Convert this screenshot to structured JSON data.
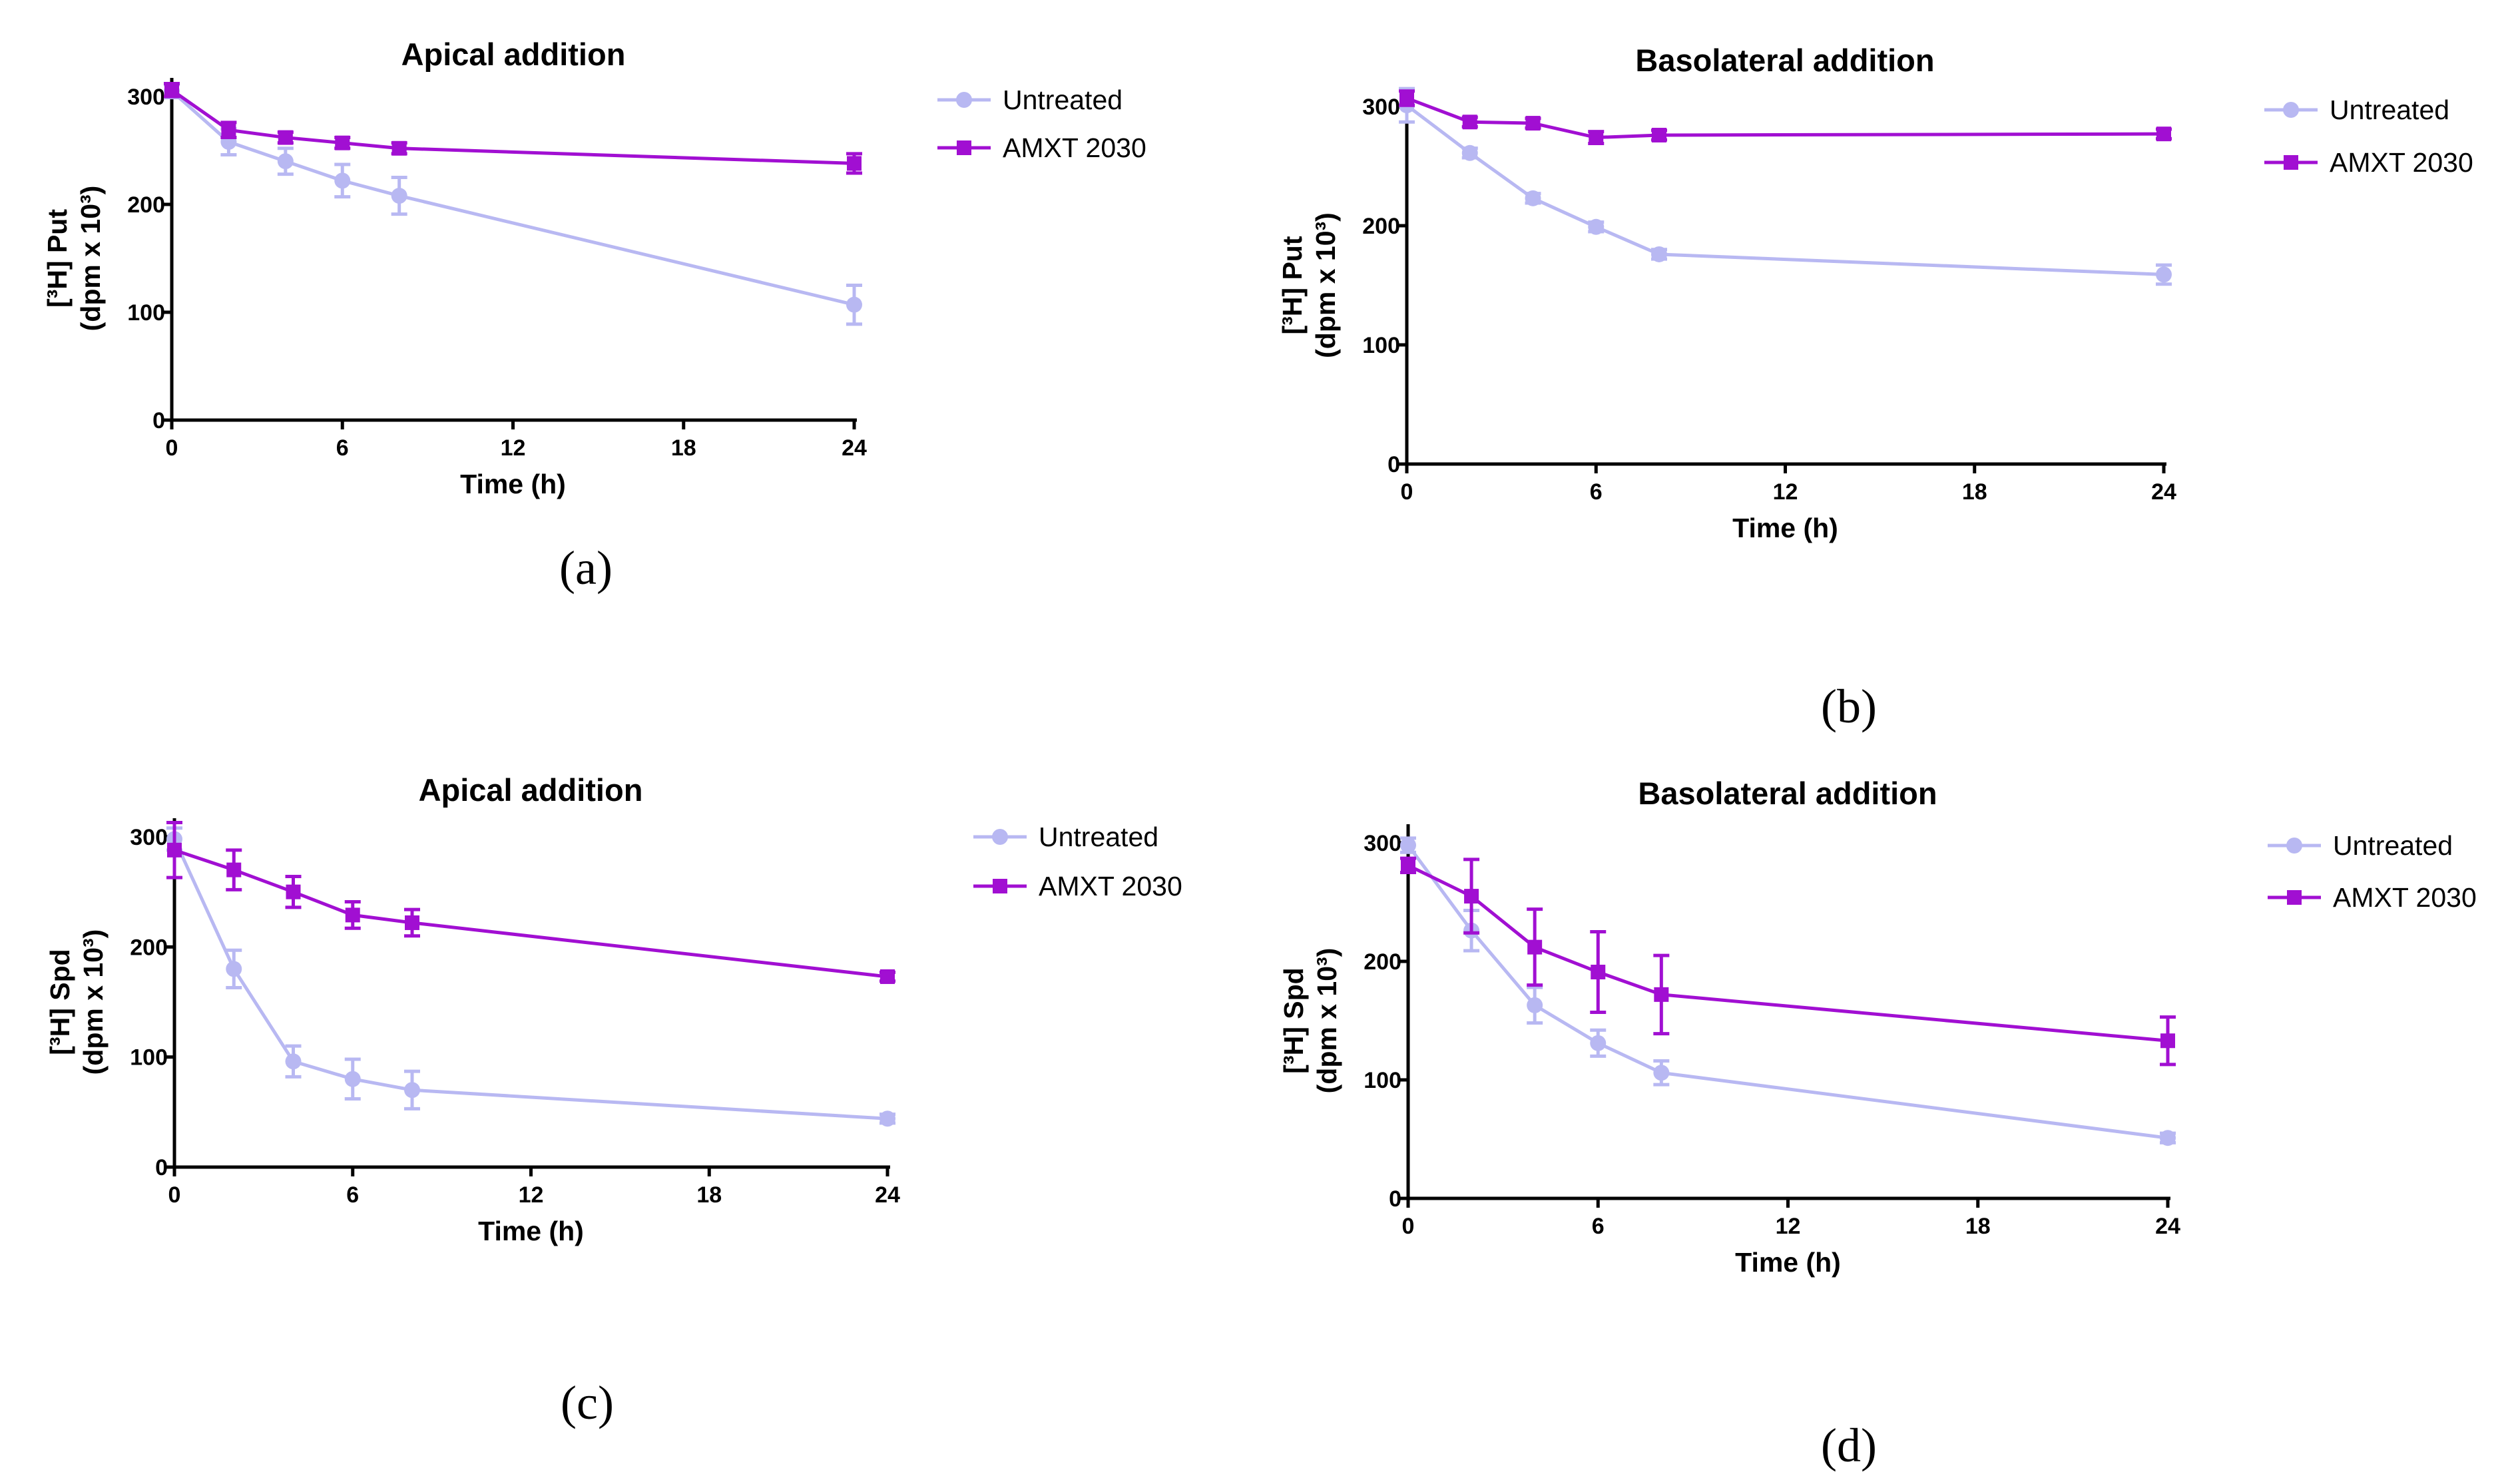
{
  "chart_data": [
    {
      "type": "line",
      "panel_label": "(a)",
      "title": "Apical addition",
      "xlabel": "Time (h)",
      "ylabel_main": "[³H] Put",
      "ylabel_sub": "(dpm x 10³)",
      "xlim": [
        0,
        24
      ],
      "ylim": [
        0,
        300
      ],
      "xticks": [
        0,
        6,
        12,
        18,
        24
      ],
      "yticks": [
        0,
        100,
        200,
        300
      ],
      "legend_position": "top-right-outside",
      "series": [
        {
          "name": "Untreated",
          "color": "#b8b8f2",
          "marker": "circle",
          "x": [
            0,
            2,
            4,
            6,
            8,
            24
          ],
          "y": [
            305,
            258,
            240,
            222,
            208,
            107
          ],
          "err": [
            6,
            12,
            12,
            15,
            17,
            18
          ]
        },
        {
          "name": "AMXT 2030",
          "color": "#a10fd2",
          "marker": "square",
          "x": [
            0,
            2,
            4,
            6,
            8,
            24
          ],
          "y": [
            306,
            269,
            262,
            257,
            252,
            238
          ],
          "err": [
            6,
            7,
            5,
            5,
            5,
            9
          ]
        }
      ]
    },
    {
      "type": "line",
      "panel_label": "(b)",
      "title": "Basolateral addition",
      "xlabel": "Time (h)",
      "ylabel_main": "[³H] Put",
      "ylabel_sub": "(dpm x 10³)",
      "xlim": [
        0,
        24
      ],
      "ylim": [
        0,
        300
      ],
      "xticks": [
        0,
        6,
        12,
        18,
        24
      ],
      "yticks": [
        0,
        100,
        200,
        300
      ],
      "legend_position": "top-right-outside",
      "series": [
        {
          "name": "Untreated",
          "color": "#b8b8f2",
          "marker": "circle",
          "x": [
            0,
            2,
            4,
            6,
            8,
            24
          ],
          "y": [
            301,
            261,
            223,
            199,
            176,
            159
          ],
          "err": [
            14,
            4,
            4,
            4,
            4,
            8
          ]
        },
        {
          "name": "AMXT 2030",
          "color": "#a10fd2",
          "marker": "square",
          "x": [
            0,
            2,
            4,
            6,
            8,
            24
          ],
          "y": [
            307,
            287,
            286,
            274,
            276,
            277
          ],
          "err": [
            6,
            4,
            4,
            5,
            4,
            4
          ]
        }
      ]
    },
    {
      "type": "line",
      "panel_label": "(c)",
      "title": "Apical addition",
      "xlabel": "Time (h)",
      "ylabel_main": "[³H] Spd",
      "ylabel_sub": "(dpm x 10³)",
      "xlim": [
        0,
        24
      ],
      "ylim": [
        0,
        300
      ],
      "xticks": [
        0,
        6,
        12,
        18,
        24
      ],
      "yticks": [
        0,
        100,
        200,
        300
      ],
      "legend_position": "top-right-outside",
      "series": [
        {
          "name": "Untreated",
          "color": "#b8b8f2",
          "marker": "circle",
          "x": [
            0,
            2,
            4,
            6,
            8,
            24
          ],
          "y": [
            298,
            180,
            96,
            80,
            70,
            44
          ],
          "err": [
            10,
            17,
            14,
            18,
            17,
            4
          ]
        },
        {
          "name": "AMXT 2030",
          "color": "#a10fd2",
          "marker": "square",
          "x": [
            0,
            2,
            4,
            6,
            8,
            24
          ],
          "y": [
            288,
            270,
            250,
            229,
            222,
            173
          ],
          "err": [
            25,
            18,
            14,
            12,
            12,
            4
          ]
        }
      ]
    },
    {
      "type": "line",
      "panel_label": "(d)",
      "title": "Basolateral addition",
      "xlabel": "Time (h)",
      "ylabel_main": "[³H] Spd",
      "ylabel_sub": "(dpm x 10³)",
      "xlim": [
        0,
        24
      ],
      "ylim": [
        0,
        300
      ],
      "xticks": [
        0,
        6,
        12,
        18,
        24
      ],
      "yticks": [
        0,
        100,
        200,
        300
      ],
      "legend_position": "top-right-outside",
      "series": [
        {
          "name": "Untreated",
          "color": "#b8b8f2",
          "marker": "circle",
          "x": [
            0,
            2,
            4,
            6,
            8,
            24
          ],
          "y": [
            298,
            226,
            163,
            131,
            106,
            51
          ],
          "err": [
            6,
            17,
            15,
            11,
            10,
            4
          ]
        },
        {
          "name": "AMXT 2030",
          "color": "#a10fd2",
          "marker": "square",
          "x": [
            0,
            2,
            4,
            6,
            8,
            24
          ],
          "y": [
            281,
            255,
            212,
            191,
            172,
            133
          ],
          "err": [
            6,
            31,
            32,
            34,
            33,
            20
          ]
        }
      ]
    }
  ]
}
